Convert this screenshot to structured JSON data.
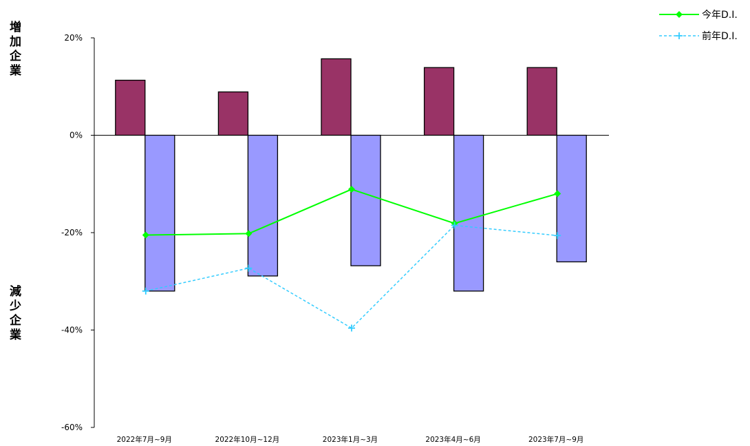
{
  "chart_data": {
    "type": "bar",
    "title": "",
    "categories": [
      "2022年7月~9月",
      "2022年10月~12月",
      "2023年1月~3月",
      "2023年4月~6月",
      "2023年7月~9月"
    ],
    "series": [
      {
        "kind": "bar",
        "values": [
          11.3,
          8.9,
          15.7,
          13.9,
          13.9
        ],
        "color": "#993366"
      },
      {
        "kind": "bar",
        "values": [
          -32.0,
          -28.9,
          -26.8,
          -32.0,
          -26.0
        ],
        "color": "#9999ff"
      },
      {
        "kind": "line",
        "name": "今年D.I.",
        "values": [
          -20.5,
          -20.2,
          -11.1,
          -18.1,
          -12.0
        ],
        "color": "#00ff00",
        "marker": "diamond",
        "dash": "solid"
      },
      {
        "kind": "line",
        "name": "前年D.I.",
        "values": [
          -32.0,
          -27.3,
          -39.6,
          -18.5,
          -20.6
        ],
        "color": "#33ccff",
        "marker": "plus",
        "dash": "dashed"
      }
    ],
    "yticks": [
      "20%",
      "0%",
      "-20%",
      "-40%",
      "-60%"
    ],
    "ylim": [
      -60,
      20
    ],
    "ylabel_top": "増加企業",
    "ylabel_bottom": "減少企業",
    "legend_position": "top-right",
    "grid": false
  }
}
